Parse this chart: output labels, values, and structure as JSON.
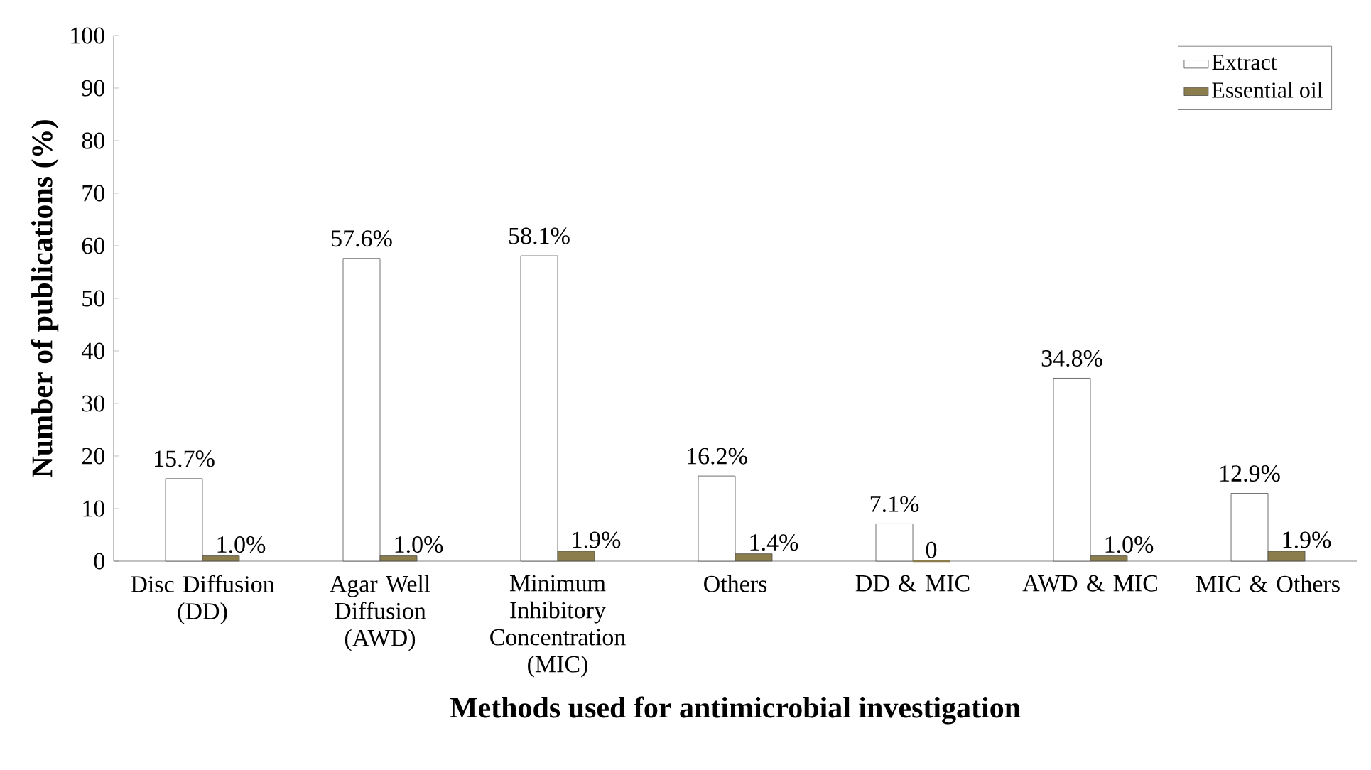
{
  "chart_data": {
    "type": "bar",
    "xlabel": "Methods used for antimicrobial investigation",
    "ylabel": "Number of publications  (%)",
    "categories": [
      "Disc Diffusion (DD)",
      "Agar Well Diffusion (AWD)",
      "Minimum Inhibitory Concentration (MIC)",
      "Others",
      "DD & MIC",
      "AWD & MIC",
      "MIC & Others"
    ],
    "series": [
      {
        "name": "Extract",
        "color": "#ffffff",
        "values": [
          15.7,
          57.6,
          58.1,
          16.2,
          7.1,
          34.8,
          12.9
        ],
        "value_labels": [
          "15.7%",
          "57.6%",
          "58.1%",
          "16.2%",
          "7.1%",
          "34.8%",
          "12.9%"
        ]
      },
      {
        "name": "Essential oil",
        "color": "#8c7e4c",
        "values": [
          1.0,
          1.0,
          1.9,
          1.4,
          0,
          1.0,
          1.9
        ],
        "value_labels": [
          "1.0%",
          "1.0%",
          "1.9%",
          "1.4%",
          "0",
          "1.0%",
          "1.9%"
        ]
      }
    ],
    "ylim": [
      0,
      100
    ],
    "yticks": [
      0,
      10,
      20,
      30,
      40,
      50,
      60,
      70,
      80,
      90,
      100
    ],
    "legend": "top right",
    "grid": false
  }
}
